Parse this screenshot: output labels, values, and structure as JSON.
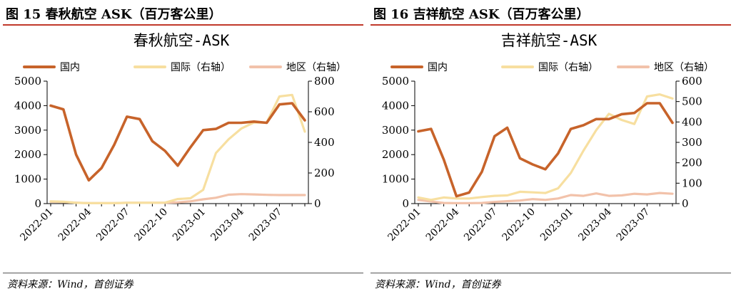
{
  "source_text": "资料来源：Wind，首创证券",
  "colors": {
    "domestic": "#c7632a",
    "international": "#f7dfa0",
    "regional": "#f2c2aa"
  },
  "chart_data": [
    {
      "fig_title": "图 15 春秋航空 ASK（百万客公里）",
      "type": "line",
      "title": "春秋航空-ASK",
      "x": [
        "2022-01",
        "2022-02",
        "2022-03",
        "2022-04",
        "2022-05",
        "2022-06",
        "2022-07",
        "2022-08",
        "2022-09",
        "2022-10",
        "2022-11",
        "2022-12",
        "2023-01",
        "2023-02",
        "2023-03",
        "2023-04",
        "2023-05",
        "2023-06",
        "2023-07",
        "2023-08",
        "2023-09"
      ],
      "x_tick_labels": [
        "2022-01",
        "2022-04",
        "2022-07",
        "2022-10",
        "2023-01",
        "2023-04",
        "2023-07"
      ],
      "left_axis": {
        "min": 0,
        "max": 5000,
        "ticks": [
          0,
          1000,
          2000,
          3000,
          4000,
          5000
        ]
      },
      "right_axis": {
        "min": 0,
        "max": 800,
        "ticks": [
          0,
          200,
          400,
          600,
          800
        ]
      },
      "legend_position": "top",
      "series": [
        {
          "name": "国内",
          "axis": "left",
          "values": [
            4000,
            3850,
            2000,
            950,
            1450,
            2400,
            3550,
            3450,
            2550,
            2150,
            1550,
            2300,
            3000,
            3050,
            3300,
            3300,
            3350,
            3300,
            4050,
            4100,
            3400
          ]
        },
        {
          "name": "国际（右轴）",
          "axis": "right",
          "values": [
            15,
            12,
            5,
            3,
            3,
            3,
            5,
            5,
            5,
            6,
            30,
            35,
            90,
            330,
            420,
            490,
            530,
            530,
            700,
            710,
            470
          ]
        },
        {
          "name": "地区（右轴）",
          "axis": "right",
          "values": [
            12,
            10,
            6,
            3,
            3,
            3,
            5,
            5,
            5,
            5,
            8,
            15,
            28,
            38,
            58,
            62,
            60,
            57,
            56,
            56,
            56
          ]
        }
      ]
    },
    {
      "fig_title": "图 16 吉祥航空 ASK（百万客公里）",
      "type": "line",
      "title": "吉祥航空-ASK",
      "x": [
        "2022-01",
        "2022-02",
        "2022-03",
        "2022-04",
        "2022-05",
        "2022-06",
        "2022-07",
        "2022-08",
        "2022-09",
        "2022-10",
        "2022-11",
        "2022-12",
        "2023-01",
        "2023-02",
        "2023-03",
        "2023-04",
        "2023-05",
        "2023-06",
        "2023-07",
        "2023-08",
        "2023-09"
      ],
      "x_tick_labels": [
        "2022-01",
        "2022-04",
        "2022-07",
        "2022-10",
        "2023-01",
        "2023-04",
        "2023-07"
      ],
      "left_axis": {
        "min": 0,
        "max": 5000,
        "ticks": [
          0,
          1000,
          2000,
          3000,
          4000,
          5000
        ]
      },
      "right_axis": {
        "min": 0,
        "max": 600,
        "ticks": [
          0,
          100,
          200,
          300,
          400,
          500,
          600
        ]
      },
      "legend_position": "top",
      "series": [
        {
          "name": "国内",
          "axis": "left",
          "values": [
            2950,
            3050,
            1800,
            300,
            450,
            1300,
            2750,
            3100,
            1850,
            1600,
            1400,
            2050,
            3050,
            3200,
            3450,
            3450,
            3650,
            3700,
            4100,
            4100,
            3300
          ]
        },
        {
          "name": "国际（右轴）",
          "axis": "right",
          "values": [
            30,
            18,
            30,
            25,
            25,
            32,
            38,
            40,
            58,
            55,
            52,
            75,
            150,
            260,
            360,
            440,
            410,
            390,
            525,
            535,
            515
          ]
        },
        {
          "name": "地区（右轴）",
          "axis": "right",
          "values": [
            18,
            10,
            3,
            2,
            2,
            3,
            8,
            12,
            15,
            22,
            18,
            25,
            42,
            38,
            50,
            38,
            40,
            48,
            45,
            52,
            48
          ]
        }
      ]
    }
  ]
}
